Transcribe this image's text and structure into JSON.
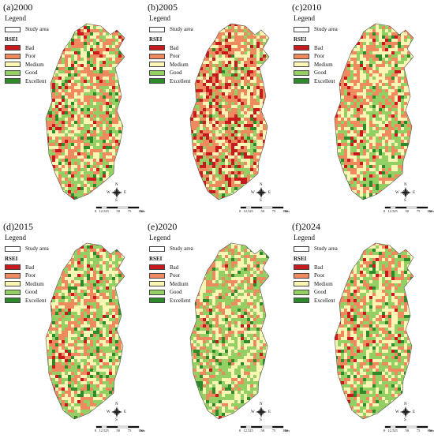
{
  "legend": {
    "title": "Legend",
    "study_area": "Study area",
    "rsei": "RSEI",
    "classes": [
      {
        "label": "Bad",
        "color": "#c8191e"
      },
      {
        "label": "Poor",
        "color": "#ee8a5e"
      },
      {
        "label": "Medium",
        "color": "#fbf6b4"
      },
      {
        "label": "Good",
        "color": "#93cf63"
      },
      {
        "label": "Excellent",
        "color": "#2f8a2b"
      }
    ]
  },
  "compass": {
    "n": "N",
    "s": "S",
    "e": "E",
    "w": "W"
  },
  "scale": {
    "ticks": [
      "0",
      "12.5",
      "25",
      "50",
      "75",
      "100"
    ],
    "unit": "km"
  },
  "panels": [
    {
      "id": "2000",
      "title": "(a)2000",
      "mix": [
        0.05,
        0.33,
        0.3,
        0.26,
        0.06
      ]
    },
    {
      "id": "2005",
      "title": "(b)2005",
      "mix": [
        0.17,
        0.38,
        0.25,
        0.17,
        0.03
      ]
    },
    {
      "id": "2010",
      "title": "(c)2010",
      "mix": [
        0.04,
        0.34,
        0.32,
        0.25,
        0.05
      ]
    },
    {
      "id": "2015",
      "title": "(d)2015",
      "mix": [
        0.03,
        0.28,
        0.3,
        0.31,
        0.08
      ]
    },
    {
      "id": "2020",
      "title": "(e)2020",
      "mix": [
        0.01,
        0.22,
        0.34,
        0.35,
        0.08
      ]
    },
    {
      "id": "2024",
      "title": "(f)2024",
      "mix": [
        0.03,
        0.27,
        0.31,
        0.32,
        0.07
      ]
    }
  ]
}
